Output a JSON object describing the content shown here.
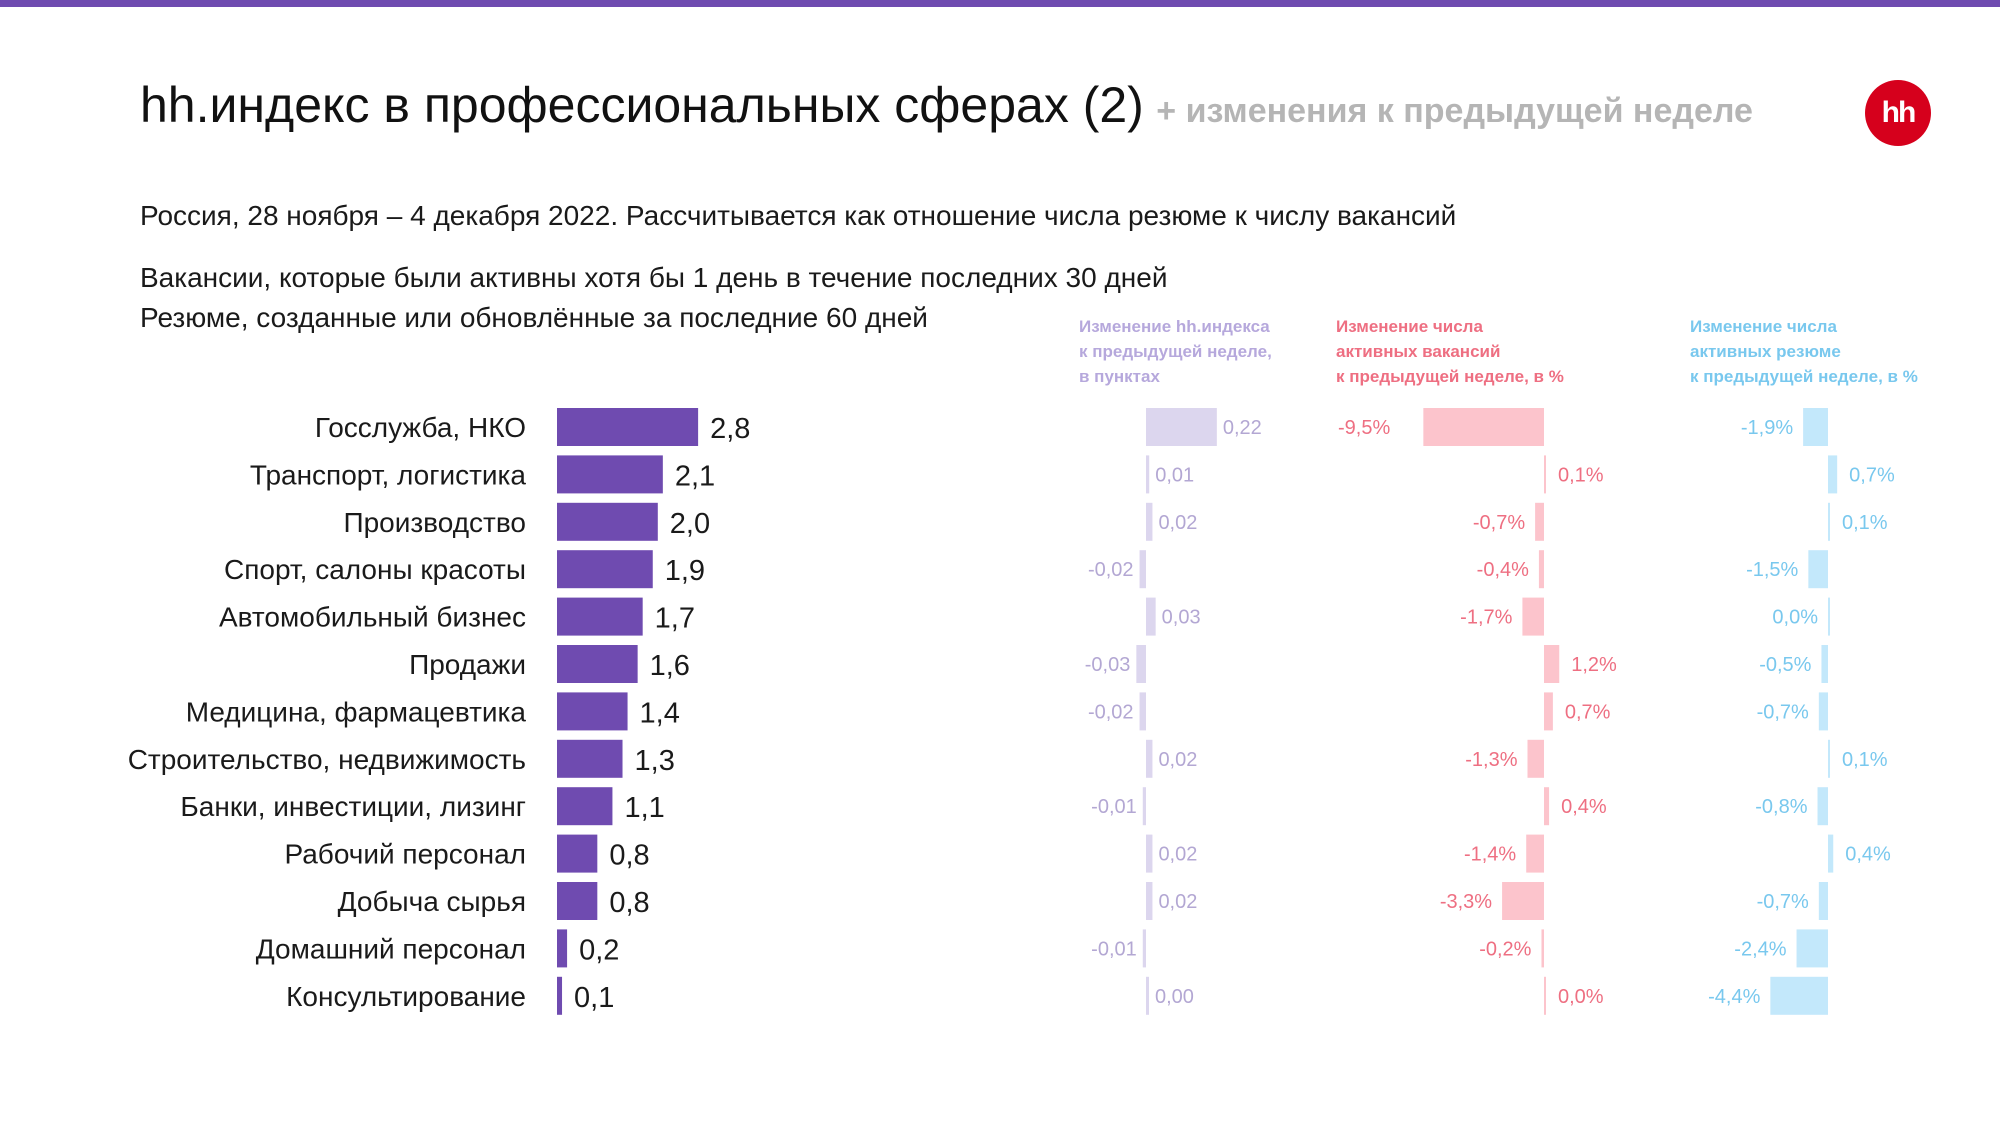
{
  "header": {
    "title": "hh.индекс в профессиональных сферах (2)",
    "subtitle": "+ изменения к предыдущей неделе",
    "logo_text": "hh"
  },
  "notes": {
    "line1": "Россия, 28 ноября – 4 декабря 2022. Рассчитывается как отношение числа резюме к числу вакансий",
    "line2": "Вакансии, которые были активны хотя бы 1 день в течение последних 30 дней",
    "line3": "Резюме, созданные или обновлённые за последние 60 дней"
  },
  "column_headers": {
    "index_change": [
      "Изменение hh.индекса",
      "к предыдущей неделе,",
      "в пунктах"
    ],
    "vacancies_change": [
      "Изменение числа",
      "активных вакансий",
      "к предыдущей неделе, в %"
    ],
    "resumes_change": [
      "Изменение числа",
      "активных резюме",
      "к предыдущей неделе, в %"
    ]
  },
  "colors": {
    "top_strip": "#6f4bb0",
    "logo": "#d6001c",
    "main_bar": "#6f4bb0",
    "index_change_bar": "#dcd6ee",
    "index_change_text": "#b3a7d3",
    "vacancies_bar": "#fcc4cc",
    "vacancies_text": "#ee6f82",
    "resumes_bar": "#c3e8fb",
    "resumes_text": "#79c8ee",
    "head_index": "#b6a8dc",
    "head_vacancies": "#ee6f82",
    "head_resumes": "#79c8ee"
  },
  "chart_data": {
    "type": "bar",
    "orientation": "horizontal",
    "categories": [
      "Госслужба, НКО",
      "Транспорт, логистика",
      "Производство",
      "Спорт, салоны красоты",
      "Автомобильный бизнес",
      "Продажи",
      "Медицина, фармацевтика",
      "Строительство, недвижимость",
      "Банки, инвестиции, лизинг",
      "Рабочий персонал",
      "Добыча сырья",
      "Домашний персонал",
      "Консультирование"
    ],
    "series": [
      {
        "values": [
          2.8,
          2.1,
          2.0,
          1.9,
          1.7,
          1.6,
          1.4,
          1.3,
          1.1,
          0.8,
          0.8,
          0.2,
          0.1
        ],
        "labels": [
          "2,8",
          "2,1",
          "2,0",
          "1,9",
          "1,7",
          "1,6",
          "1,4",
          "1,3",
          "1,1",
          "0,8",
          "0,8",
          "0,2",
          "0,1"
        ]
      },
      {
        "values": [
          0.22,
          0.01,
          0.02,
          -0.02,
          0.03,
          -0.03,
          -0.02,
          0.02,
          -0.01,
          0.02,
          0.02,
          -0.01,
          0.0
        ],
        "labels": [
          "0,22",
          "0,01",
          "0,02",
          "-0,02",
          "0,03",
          "-0,03",
          "-0,02",
          "0,02",
          "-0,01",
          "0,02",
          "0,02",
          "-0,01",
          "0,00"
        ]
      },
      {
        "values": [
          -9.5,
          0.1,
          -0.7,
          -0.4,
          -1.7,
          1.2,
          0.7,
          -1.3,
          0.4,
          -1.4,
          -3.3,
          -0.2,
          0.0
        ],
        "labels": [
          "-9,5%",
          "0,1%",
          "-0,7%",
          "-0,4%",
          "-1,7%",
          "1,2%",
          "0,7%",
          "-1,3%",
          "0,4%",
          "-1,4%",
          "-3,3%",
          "-0,2%",
          "0,0%"
        ]
      },
      {
        "values": [
          -1.9,
          0.7,
          0.1,
          -1.5,
          0.0,
          -0.5,
          -0.7,
          0.1,
          -0.8,
          0.4,
          -0.7,
          -2.4,
          -4.4
        ],
        "labels": [
          "-1,9%",
          "0,7%",
          "0,1%",
          "-1,5%",
          "0,0%",
          "-0,5%",
          "-0,7%",
          "0,1%",
          "-0,8%",
          "0,4%",
          "-0,7%",
          "-2,4%",
          "-4,4%"
        ]
      }
    ]
  }
}
